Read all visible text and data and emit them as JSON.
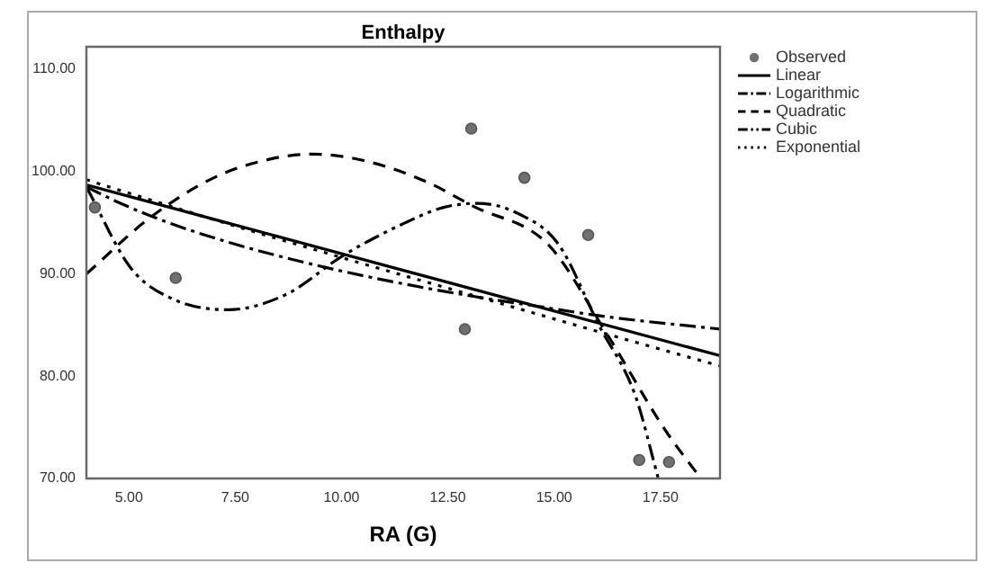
{
  "chart_data": {
    "type": "scatter",
    "title": "Enthalpy",
    "xlabel": "RA (G)",
    "xlim": [
      4,
      18.9
    ],
    "xticks": [
      {
        "value": 5,
        "label": "5.00"
      },
      {
        "value": 7.5,
        "label": "7.50"
      },
      {
        "value": 10,
        "label": "10.00"
      },
      {
        "value": 12.5,
        "label": "12.50"
      },
      {
        "value": 15,
        "label": "15.00"
      },
      {
        "value": 17.5,
        "label": "17.50"
      }
    ],
    "ylim": [
      70,
      112.2
    ],
    "yticks": [
      {
        "value": 70,
        "label": "70.00"
      },
      {
        "value": 80,
        "label": "80.00"
      },
      {
        "value": 90,
        "label": "90.00"
      },
      {
        "value": 100,
        "label": "100.00"
      },
      {
        "value": 110,
        "label": "110.00"
      }
    ],
    "grid": false,
    "legend": "top right",
    "series": [
      {
        "name": "Observed",
        "type": "scatter",
        "marker": "circle",
        "color": "#707070",
        "x": [
          4.2,
          6.1,
          12.9,
          13.05,
          14.3,
          15.8,
          17.0,
          17.7
        ],
        "values": [
          96.5,
          89.6,
          84.6,
          104.2,
          99.4,
          93.8,
          71.8,
          71.6
        ]
      },
      {
        "name": "Linear",
        "type": "line",
        "marker": "none",
        "line_style": "solid",
        "color": "#000000",
        "x": [
          4,
          18.9
        ],
        "values": [
          98.7,
          82.0
        ]
      },
      {
        "name": "Logarithmic",
        "type": "line",
        "marker": "none",
        "line_style": "dashdot",
        "color": "#000000",
        "x": [
          4,
          4.8,
          6,
          7.5,
          9.35,
          11,
          13.1,
          14.5,
          16.25,
          18.9
        ],
        "values": [
          98.5,
          96.9,
          94.9,
          92.9,
          90.9,
          89.4,
          87.8,
          86.9,
          85.8,
          84.6
        ]
      },
      {
        "name": "Quadratic",
        "type": "line",
        "marker": "none",
        "line_style": "dashed",
        "color": "#000000",
        "x": [
          4,
          5.5,
          7,
          8.3,
          9.3,
          10.5,
          12,
          13.1,
          14.85,
          16.2,
          17.6,
          18.45
        ],
        "values": [
          90.0,
          95.5,
          99.4,
          101.2,
          101.7,
          101.1,
          99.0,
          96.6,
          92.9,
          84.4,
          74.8,
          70.0
        ]
      },
      {
        "name": "Cubic",
        "type": "line",
        "marker": "none",
        "line_style": "dashdotdot",
        "color": "#000000",
        "x": [
          4,
          5.04,
          6,
          7.33,
          8.7,
          10.04,
          11.5,
          12.4,
          13.2,
          14.2,
          15.1,
          16.05,
          16.9,
          17.45
        ],
        "values": [
          98.5,
          90.6,
          87.6,
          86.5,
          88.0,
          91.8,
          95.0,
          96.5,
          96.9,
          95.8,
          92.9,
          85.0,
          78.2,
          70.0
        ]
      },
      {
        "name": "Exponential",
        "type": "line",
        "marker": "none",
        "line_style": "dotted",
        "color": "#000000",
        "x": [
          4,
          7,
          10,
          13,
          16,
          18.9
        ],
        "values": [
          99.2,
          95.3,
          91.6,
          88.0,
          84.4,
          81.0
        ]
      }
    ]
  }
}
